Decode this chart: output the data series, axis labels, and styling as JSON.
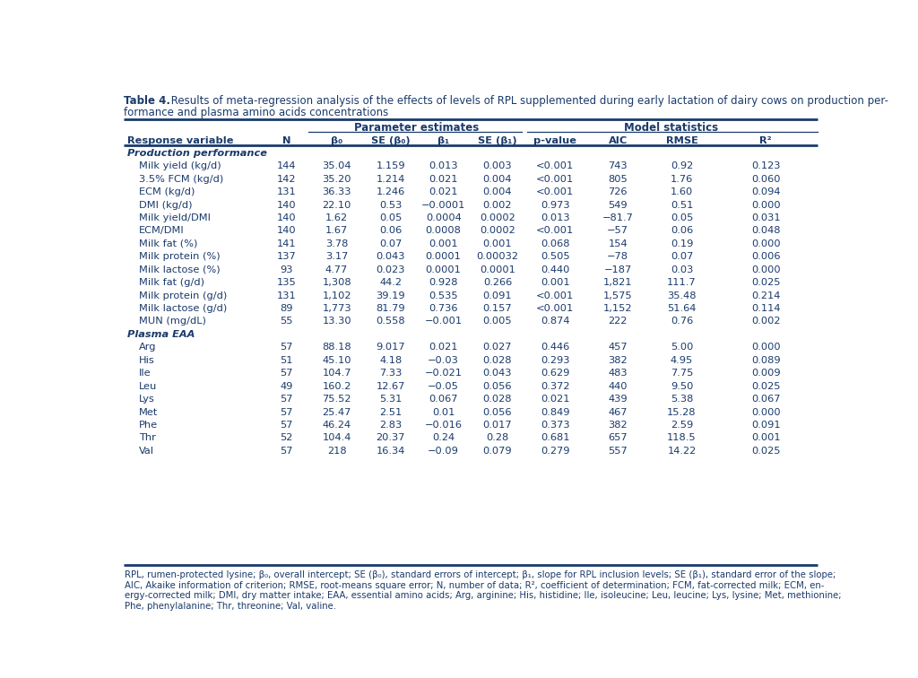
{
  "title_bold": "Table 4.",
  "title_rest": " Results of meta-regression analysis of the effects of levels of RPL supplemented during early lactation of dairy cows on production per-",
  "title_line2": "formance and plasma amino acids concentrations",
  "col_headers_line2": [
    "Response variable",
    "N",
    "β₀",
    "SE (β₀)",
    "β₁",
    "SE (β₁)",
    "p-value",
    "AIC",
    "RMSE",
    "R²"
  ],
  "section1": "Production performance",
  "section2": "Plasma EAA",
  "rows": [
    [
      "Milk yield (kg/d)",
      "144",
      "35.04",
      "1.159",
      "0.013",
      "0.003",
      "<0.001",
      "743",
      "0.92",
      "0.123"
    ],
    [
      "3.5% FCM (kg/d)",
      "142",
      "35.20",
      "1.214",
      "0.021",
      "0.004",
      "<0.001",
      "805",
      "1.76",
      "0.060"
    ],
    [
      "ECM (kg/d)",
      "131",
      "36.33",
      "1.246",
      "0.021",
      "0.004",
      "<0.001",
      "726",
      "1.60",
      "0.094"
    ],
    [
      "DMI (kg/d)",
      "140",
      "22.10",
      "0.53",
      "−0.0001",
      "0.002",
      "0.973",
      "549",
      "0.51",
      "0.000"
    ],
    [
      "Milk yield/DMI",
      "140",
      "1.62",
      "0.05",
      "0.0004",
      "0.0002",
      "0.013",
      "−81.7",
      "0.05",
      "0.031"
    ],
    [
      "ECM/DMI",
      "140",
      "1.67",
      "0.06",
      "0.0008",
      "0.0002",
      "<0.001",
      "−57",
      "0.06",
      "0.048"
    ],
    [
      "Milk fat (%)",
      "141",
      "3.78",
      "0.07",
      "0.001",
      "0.001",
      "0.068",
      "154",
      "0.19",
      "0.000"
    ],
    [
      "Milk protein (%)",
      "137",
      "3.17",
      "0.043",
      "0.0001",
      "0.00032",
      "0.505",
      "−78",
      "0.07",
      "0.006"
    ],
    [
      "Milk lactose (%)",
      "93",
      "4.77",
      "0.023",
      "0.0001",
      "0.0001",
      "0.440",
      "−187",
      "0.03",
      "0.000"
    ],
    [
      "Milk fat (g/d)",
      "135",
      "1,308",
      "44.2",
      "0.928",
      "0.266",
      "0.001",
      "1,821",
      "111.7",
      "0.025"
    ],
    [
      "Milk protein (g/d)",
      "131",
      "1,102",
      "39.19",
      "0.535",
      "0.091",
      "<0.001",
      "1,575",
      "35.48",
      "0.214"
    ],
    [
      "Milk lactose (g/d)",
      "89",
      "1,773",
      "81.79",
      "0.736",
      "0.157",
      "<0.001",
      "1,152",
      "51.64",
      "0.114"
    ],
    [
      "MUN (mg/dL)",
      "55",
      "13.30",
      "0.558",
      "−0.001",
      "0.005",
      "0.874",
      "222",
      "0.76",
      "0.002"
    ],
    [
      "Arg",
      "57",
      "88.18",
      "9.017",
      "0.021",
      "0.027",
      "0.446",
      "457",
      "5.00",
      "0.000"
    ],
    [
      "His",
      "51",
      "45.10",
      "4.18",
      "−0.03",
      "0.028",
      "0.293",
      "382",
      "4.95",
      "0.089"
    ],
    [
      "Ile",
      "57",
      "104.7",
      "7.33",
      "−0.021",
      "0.043",
      "0.629",
      "483",
      "7.75",
      "0.009"
    ],
    [
      "Leu",
      "49",
      "160.2",
      "12.67",
      "−0.05",
      "0.056",
      "0.372",
      "440",
      "9.50",
      "0.025"
    ],
    [
      "Lys",
      "57",
      "75.52",
      "5.31",
      "0.067",
      "0.028",
      "0.021",
      "439",
      "5.38",
      "0.067"
    ],
    [
      "Met",
      "57",
      "25.47",
      "2.51",
      "0.01",
      "0.056",
      "0.849",
      "467",
      "15.28",
      "0.000"
    ],
    [
      "Phe",
      "57",
      "46.24",
      "2.83",
      "−0.016",
      "0.017",
      "0.373",
      "382",
      "2.59",
      "0.091"
    ],
    [
      "Thr",
      "52",
      "104.4",
      "20.37",
      "0.24",
      "0.28",
      "0.681",
      "657",
      "118.5",
      "0.001"
    ],
    [
      "Val",
      "57",
      "218",
      "16.34",
      "−0.09",
      "0.079",
      "0.279",
      "557",
      "14.22",
      "0.025"
    ]
  ],
  "section1_row": 0,
  "section2_row": 13,
  "footnote_line1": "RPL, rumen-protected lysine; β₀, overall intercept; SE (β₀), standard errors of intercept; β₁, slope for RPL inclusion levels; SE (β₁), standard error of the slope;",
  "footnote_line2": "AIC, Akaike information of criterion; RMSE, root-means square error; N, number of data; R², coefficient of determination; FCM, fat-corrected milk; ECM, en-",
  "footnote_line3": "ergy-corrected milk; DMI, dry matter intake; EAA, essential amino acids; Arg, arginine; His, histidine; Ile, isoleucine; Leu, leucine; Lys, lysine; Met, methionine;",
  "footnote_line4": "Phe, phenylalanine; Thr, threonine; Val, valine.",
  "header_color": "#1a3a6b",
  "text_color": "#1a3a6b",
  "bg_color": "#ffffff",
  "line_color": "#1a3a6b",
  "font_size": 8.2,
  "title_font_size": 8.5
}
